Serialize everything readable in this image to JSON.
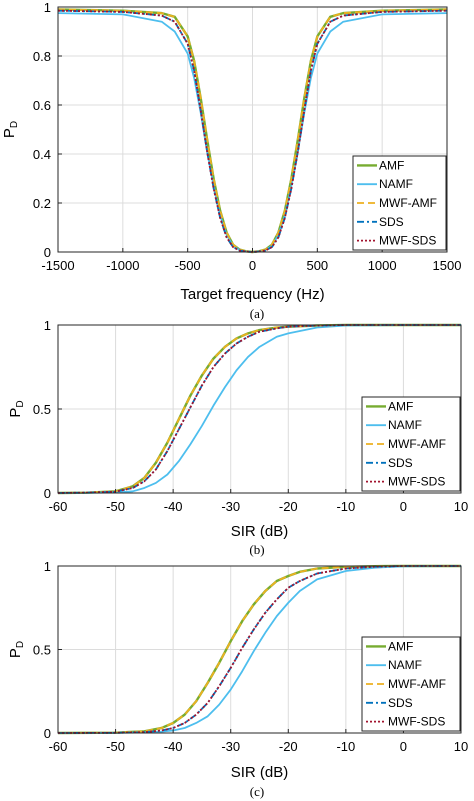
{
  "styles": {
    "AMF": {
      "color": "#77ac30",
      "dash": "",
      "width": 2.4
    },
    "NAMF": {
      "color": "#4dbeee",
      "dash": "",
      "width": 1.8
    },
    "MWF-AMF": {
      "color": "#edb120",
      "dash": "7,4",
      "width": 1.8
    },
    "SDS": {
      "color": "#0072bd",
      "dash": "7,3,2,3",
      "width": 1.8
    },
    "MWF-SDS": {
      "color": "#a2142f",
      "dash": "2,2",
      "width": 1.8
    }
  },
  "chart_data": [
    {
      "type": "line",
      "caption": "(a)",
      "xlabel": "Target frequency (Hz)",
      "ylabel": "P",
      "ylabel_sub": "D",
      "xlim": [
        -1500,
        1500
      ],
      "ylim": [
        0,
        1
      ],
      "xticks": [
        -1500,
        -1000,
        -500,
        0,
        500,
        1000,
        1500
      ],
      "xtick_labels": [
        "-1500",
        "-1000",
        "-500",
        "0",
        "500",
        "1000",
        "1500"
      ],
      "yticks": [
        0,
        0.2,
        0.4,
        0.6,
        0.8,
        1
      ],
      "ytick_labels": [
        "0",
        "0.2",
        "0.4",
        "0.6",
        "0.8",
        "1"
      ],
      "grid": true,
      "legend_position": "bottom-right",
      "legend": [
        "AMF",
        "NAMF",
        "MWF-AMF",
        "SDS",
        "MWF-SDS"
      ],
      "series": [
        {
          "name": "AMF",
          "x": [
            -1500,
            -1000,
            -700,
            -600,
            -500,
            -450,
            -400,
            -350,
            -300,
            -250,
            -200,
            -150,
            -100,
            -50,
            0,
            50,
            100,
            150,
            200,
            250,
            300,
            350,
            400,
            450,
            500,
            600,
            700,
            1000,
            1500
          ],
          "y": [
            0.99,
            0.985,
            0.975,
            0.96,
            0.88,
            0.78,
            0.63,
            0.46,
            0.3,
            0.17,
            0.08,
            0.03,
            0.01,
            0.003,
            0,
            0.003,
            0.01,
            0.03,
            0.08,
            0.17,
            0.3,
            0.46,
            0.63,
            0.78,
            0.88,
            0.96,
            0.975,
            0.985,
            0.99
          ]
        },
        {
          "name": "NAMF",
          "x": [
            -1500,
            -1000,
            -700,
            -600,
            -500,
            -450,
            -400,
            -350,
            -300,
            -250,
            -200,
            -150,
            -100,
            -50,
            0,
            50,
            100,
            150,
            200,
            250,
            300,
            350,
            400,
            450,
            500,
            600,
            700,
            1000,
            1500
          ],
          "y": [
            0.975,
            0.97,
            0.94,
            0.9,
            0.81,
            0.71,
            0.57,
            0.41,
            0.27,
            0.15,
            0.07,
            0.025,
            0.008,
            0.002,
            0,
            0.002,
            0.008,
            0.025,
            0.07,
            0.15,
            0.27,
            0.41,
            0.57,
            0.71,
            0.81,
            0.9,
            0.94,
            0.97,
            0.975
          ]
        },
        {
          "name": "MWF-AMF",
          "x": [
            -1500,
            -1000,
            -700,
            -600,
            -500,
            -450,
            -400,
            -350,
            -300,
            -250,
            -200,
            -150,
            -100,
            -50,
            0,
            50,
            100,
            150,
            200,
            250,
            300,
            350,
            400,
            450,
            500,
            600,
            700,
            1000,
            1500
          ],
          "y": [
            0.99,
            0.985,
            0.975,
            0.96,
            0.88,
            0.78,
            0.63,
            0.46,
            0.3,
            0.17,
            0.08,
            0.03,
            0.01,
            0.003,
            0,
            0.003,
            0.01,
            0.03,
            0.08,
            0.17,
            0.3,
            0.46,
            0.63,
            0.78,
            0.88,
            0.96,
            0.975,
            0.985,
            0.99
          ]
        },
        {
          "name": "SDS",
          "x": [
            -1500,
            -1000,
            -700,
            -600,
            -500,
            -450,
            -400,
            -350,
            -300,
            -250,
            -200,
            -150,
            -100,
            -50,
            0,
            50,
            100,
            150,
            200,
            250,
            300,
            350,
            400,
            450,
            500,
            600,
            700,
            1000,
            1500
          ],
          "y": [
            0.985,
            0.98,
            0.965,
            0.94,
            0.85,
            0.74,
            0.58,
            0.41,
            0.26,
            0.14,
            0.06,
            0.02,
            0.006,
            0.002,
            0,
            0.002,
            0.006,
            0.02,
            0.06,
            0.14,
            0.26,
            0.41,
            0.58,
            0.74,
            0.85,
            0.94,
            0.965,
            0.98,
            0.985
          ]
        },
        {
          "name": "MWF-SDS",
          "x": [
            -1500,
            -1000,
            -700,
            -600,
            -500,
            -450,
            -400,
            -350,
            -300,
            -250,
            -200,
            -150,
            -100,
            -50,
            0,
            50,
            100,
            150,
            200,
            250,
            300,
            350,
            400,
            450,
            500,
            600,
            700,
            1000,
            1500
          ],
          "y": [
            0.985,
            0.98,
            0.965,
            0.94,
            0.85,
            0.74,
            0.58,
            0.41,
            0.26,
            0.14,
            0.06,
            0.02,
            0.006,
            0.002,
            0,
            0.002,
            0.006,
            0.02,
            0.06,
            0.14,
            0.26,
            0.41,
            0.58,
            0.74,
            0.85,
            0.94,
            0.965,
            0.98,
            0.985
          ]
        }
      ]
    },
    {
      "type": "line",
      "caption": "(b)",
      "xlabel": "SIR (dB)",
      "ylabel": "P",
      "ylabel_sub": "D",
      "xlim": [
        -60,
        10
      ],
      "ylim": [
        0,
        1
      ],
      "xticks": [
        -60,
        -50,
        -40,
        -30,
        -20,
        -10,
        0,
        10
      ],
      "xtick_labels": [
        "-60",
        "-50",
        "-40",
        "-30",
        "-20",
        "-10",
        "0",
        "10"
      ],
      "yticks": [
        0,
        0.5,
        1
      ],
      "ytick_labels": [
        "0",
        "0.5",
        "1"
      ],
      "grid": true,
      "legend_position": "bottom-right",
      "legend": [
        "AMF",
        "NAMF",
        "MWF-AMF",
        "SDS",
        "MWF-SDS"
      ],
      "series": [
        {
          "name": "AMF",
          "x": [
            -60,
            -55,
            -50,
            -47,
            -45,
            -43,
            -41,
            -39,
            -37,
            -35,
            -33,
            -31,
            -29,
            -27,
            -25,
            -22,
            -20,
            -15,
            -10,
            0,
            10
          ],
          "y": [
            0,
            0.002,
            0.01,
            0.04,
            0.09,
            0.18,
            0.3,
            0.44,
            0.58,
            0.7,
            0.8,
            0.87,
            0.92,
            0.95,
            0.97,
            0.985,
            0.99,
            0.997,
            1,
            1,
            1
          ]
        },
        {
          "name": "NAMF",
          "x": [
            -60,
            -55,
            -50,
            -47,
            -45,
            -43,
            -41,
            -39,
            -37,
            -35,
            -33,
            -31,
            -29,
            -27,
            -25,
            -22,
            -20,
            -15,
            -10,
            0,
            10
          ],
          "y": [
            0,
            0.001,
            0.003,
            0.01,
            0.03,
            0.06,
            0.11,
            0.19,
            0.29,
            0.4,
            0.52,
            0.63,
            0.73,
            0.81,
            0.87,
            0.93,
            0.95,
            0.985,
            0.997,
            1,
            1
          ]
        },
        {
          "name": "MWF-AMF",
          "x": [
            -60,
            -55,
            -50,
            -47,
            -45,
            -43,
            -41,
            -39,
            -37,
            -35,
            -33,
            -31,
            -29,
            -27,
            -25,
            -22,
            -20,
            -15,
            -10,
            0,
            10
          ],
          "y": [
            0,
            0.002,
            0.01,
            0.04,
            0.09,
            0.18,
            0.3,
            0.44,
            0.58,
            0.7,
            0.8,
            0.87,
            0.92,
            0.95,
            0.97,
            0.985,
            0.99,
            0.997,
            1,
            1,
            1
          ]
        },
        {
          "name": "SDS",
          "x": [
            -60,
            -55,
            -50,
            -47,
            -45,
            -43,
            -41,
            -39,
            -37,
            -35,
            -33,
            -31,
            -29,
            -27,
            -25,
            -22,
            -20,
            -15,
            -10,
            0,
            10
          ],
          "y": [
            0,
            0.002,
            0.008,
            0.03,
            0.07,
            0.14,
            0.25,
            0.38,
            0.51,
            0.64,
            0.75,
            0.83,
            0.89,
            0.93,
            0.96,
            0.98,
            0.99,
            0.997,
            1,
            1,
            1
          ]
        },
        {
          "name": "MWF-SDS",
          "x": [
            -60,
            -55,
            -50,
            -47,
            -45,
            -43,
            -41,
            -39,
            -37,
            -35,
            -33,
            -31,
            -29,
            -27,
            -25,
            -22,
            -20,
            -15,
            -10,
            0,
            10
          ],
          "y": [
            0,
            0.002,
            0.008,
            0.03,
            0.07,
            0.14,
            0.25,
            0.38,
            0.51,
            0.64,
            0.75,
            0.83,
            0.89,
            0.93,
            0.96,
            0.98,
            0.99,
            0.997,
            1,
            1,
            1
          ]
        }
      ]
    },
    {
      "type": "line",
      "caption": "(c)",
      "xlabel": "SIR (dB)",
      "ylabel": "P",
      "ylabel_sub": "D",
      "xlim": [
        -60,
        10
      ],
      "ylim": [
        0,
        1
      ],
      "xticks": [
        -60,
        -50,
        -40,
        -30,
        -20,
        -10,
        0,
        10
      ],
      "xtick_labels": [
        "-60",
        "-50",
        "-40",
        "-30",
        "-20",
        "-10",
        "0",
        "10"
      ],
      "yticks": [
        0,
        0.5,
        1
      ],
      "ytick_labels": [
        "0",
        "0.5",
        "1"
      ],
      "grid": true,
      "legend_position": "bottom-right",
      "legend": [
        "AMF",
        "NAMF",
        "MWF-AMF",
        "SDS",
        "MWF-SDS"
      ],
      "series": [
        {
          "name": "AMF",
          "x": [
            -60,
            -50,
            -45,
            -42,
            -40,
            -38,
            -36,
            -34,
            -32,
            -30,
            -28,
            -26,
            -24,
            -22,
            -20,
            -18,
            -15,
            -10,
            -5,
            0,
            10
          ],
          "y": [
            0,
            0.002,
            0.01,
            0.03,
            0.06,
            0.11,
            0.19,
            0.3,
            0.42,
            0.55,
            0.67,
            0.77,
            0.85,
            0.91,
            0.94,
            0.965,
            0.985,
            0.995,
            0.999,
            1,
            1
          ]
        },
        {
          "name": "NAMF",
          "x": [
            -60,
            -50,
            -45,
            -42,
            -40,
            -38,
            -36,
            -34,
            -32,
            -30,
            -28,
            -26,
            -24,
            -22,
            -20,
            -18,
            -15,
            -10,
            -5,
            0,
            10
          ],
          "y": [
            0,
            0.001,
            0.003,
            0.008,
            0.015,
            0.03,
            0.06,
            0.1,
            0.17,
            0.26,
            0.37,
            0.49,
            0.6,
            0.7,
            0.78,
            0.85,
            0.92,
            0.97,
            0.99,
            0.998,
            1
          ]
        },
        {
          "name": "MWF-AMF",
          "x": [
            -60,
            -50,
            -45,
            -42,
            -40,
            -38,
            -36,
            -34,
            -32,
            -30,
            -28,
            -26,
            -24,
            -22,
            -20,
            -18,
            -15,
            -10,
            -5,
            0,
            10
          ],
          "y": [
            0,
            0.002,
            0.01,
            0.03,
            0.06,
            0.11,
            0.19,
            0.3,
            0.42,
            0.55,
            0.67,
            0.77,
            0.85,
            0.91,
            0.94,
            0.965,
            0.985,
            0.995,
            0.999,
            1,
            1
          ]
        },
        {
          "name": "SDS",
          "x": [
            -60,
            -50,
            -45,
            -42,
            -40,
            -38,
            -36,
            -34,
            -32,
            -30,
            -28,
            -26,
            -24,
            -22,
            -20,
            -18,
            -15,
            -10,
            -5,
            0,
            10
          ],
          "y": [
            0,
            0.001,
            0.005,
            0.015,
            0.03,
            0.06,
            0.11,
            0.18,
            0.28,
            0.39,
            0.51,
            0.62,
            0.72,
            0.8,
            0.87,
            0.91,
            0.955,
            0.985,
            0.996,
            1,
            1
          ]
        },
        {
          "name": "MWF-SDS",
          "x": [
            -60,
            -50,
            -45,
            -42,
            -40,
            -38,
            -36,
            -34,
            -32,
            -30,
            -28,
            -26,
            -24,
            -22,
            -20,
            -18,
            -15,
            -10,
            -5,
            0,
            10
          ],
          "y": [
            0,
            0.001,
            0.005,
            0.015,
            0.03,
            0.06,
            0.11,
            0.18,
            0.28,
            0.39,
            0.51,
            0.62,
            0.72,
            0.8,
            0.87,
            0.91,
            0.955,
            0.985,
            0.996,
            1,
            1
          ]
        }
      ]
    }
  ]
}
